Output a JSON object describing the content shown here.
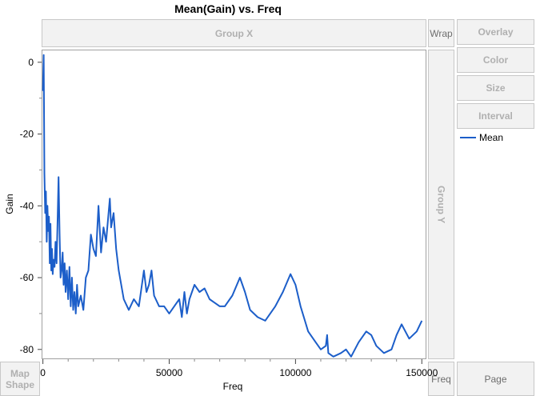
{
  "title": "Mean(Gain) vs. Freq",
  "zones": {
    "group_x": "Group X",
    "group_y": "Group Y",
    "wrap": "Wrap",
    "overlay": "Overlay",
    "color": "Color",
    "size": "Size",
    "interval": "Interval",
    "map_shape": "Map Shape",
    "freq": "Freq",
    "page": "Page"
  },
  "legend": {
    "label": "Mean",
    "color": "#1c5ec9"
  },
  "chart_data": {
    "type": "line",
    "title": "Mean(Gain) vs. Freq",
    "xlabel": "Freq",
    "ylabel": "Gain",
    "xlim": [
      -200,
      151500
    ],
    "ylim": [
      -82.5,
      3.3
    ],
    "xticks": [
      0,
      50000,
      100000,
      150000
    ],
    "yticks": [
      0,
      -20,
      -40,
      -60,
      -80
    ],
    "grid": false,
    "legend_position": "right",
    "series": [
      {
        "name": "Mean",
        "color": "#1c5ec9",
        "x": [
          0,
          300,
          600,
          900,
          1200,
          1500,
          1800,
          2100,
          2400,
          2700,
          3000,
          3300,
          3600,
          3900,
          4200,
          4600,
          5000,
          5400,
          5800,
          6200,
          6600,
          7000,
          7400,
          7800,
          8200,
          8600,
          9000,
          9500,
          10000,
          10500,
          11000,
          11500,
          12000,
          12500,
          13000,
          13500,
          14000,
          15000,
          16000,
          17000,
          18000,
          19000,
          20000,
          21000,
          22000,
          23000,
          24000,
          25000,
          26000,
          26500,
          27000,
          28000,
          29000,
          30000,
          32000,
          34000,
          36000,
          38000,
          40000,
          41000,
          42000,
          43000,
          44000,
          46000,
          48000,
          50000,
          52000,
          54000,
          55000,
          56000,
          57000,
          58000,
          60000,
          62000,
          64000,
          66000,
          68000,
          70000,
          72000,
          75000,
          78000,
          80000,
          82000,
          85000,
          88000,
          90000,
          92000,
          95000,
          98000,
          100000,
          102000,
          105000,
          108000,
          110000,
          112000,
          112500,
          113000,
          115000,
          118000,
          120000,
          122000,
          125000,
          128000,
          130000,
          132000,
          135000,
          138000,
          140000,
          142000,
          145000,
          148000,
          150000
        ],
        "values": [
          -8,
          2,
          -31,
          -42,
          -36,
          -50,
          -40,
          -47,
          -43,
          -56,
          -45,
          -58,
          -52,
          -59,
          -55,
          -57,
          -50,
          -56,
          -45,
          -32,
          -48,
          -60,
          -58,
          -53,
          -62,
          -56,
          -64,
          -58,
          -66,
          -57,
          -68,
          -60,
          -69,
          -64,
          -70,
          -62,
          -68,
          -65,
          -69,
          -60,
          -58,
          -48,
          -52,
          -54,
          -40,
          -53,
          -46,
          -50,
          -42,
          -38,
          -46,
          -42,
          -52,
          -58,
          -66,
          -69,
          -66,
          -68,
          -58,
          -64,
          -62,
          -58,
          -65,
          -68,
          -68,
          -70,
          -68,
          -66,
          -71,
          -64,
          -70,
          -66,
          -62,
          -64,
          -63,
          -66,
          -67,
          -68,
          -68,
          -65,
          -60,
          -64,
          -69,
          -71,
          -72,
          -70,
          -68,
          -64,
          -59,
          -62,
          -68,
          -75,
          -78,
          -80,
          -79,
          -76,
          -81,
          -82,
          -81,
          -80,
          -82,
          -78,
          -75,
          -76,
          -79,
          -81,
          -80,
          -76,
          -73,
          -77,
          -75,
          -72
        ]
      }
    ]
  }
}
